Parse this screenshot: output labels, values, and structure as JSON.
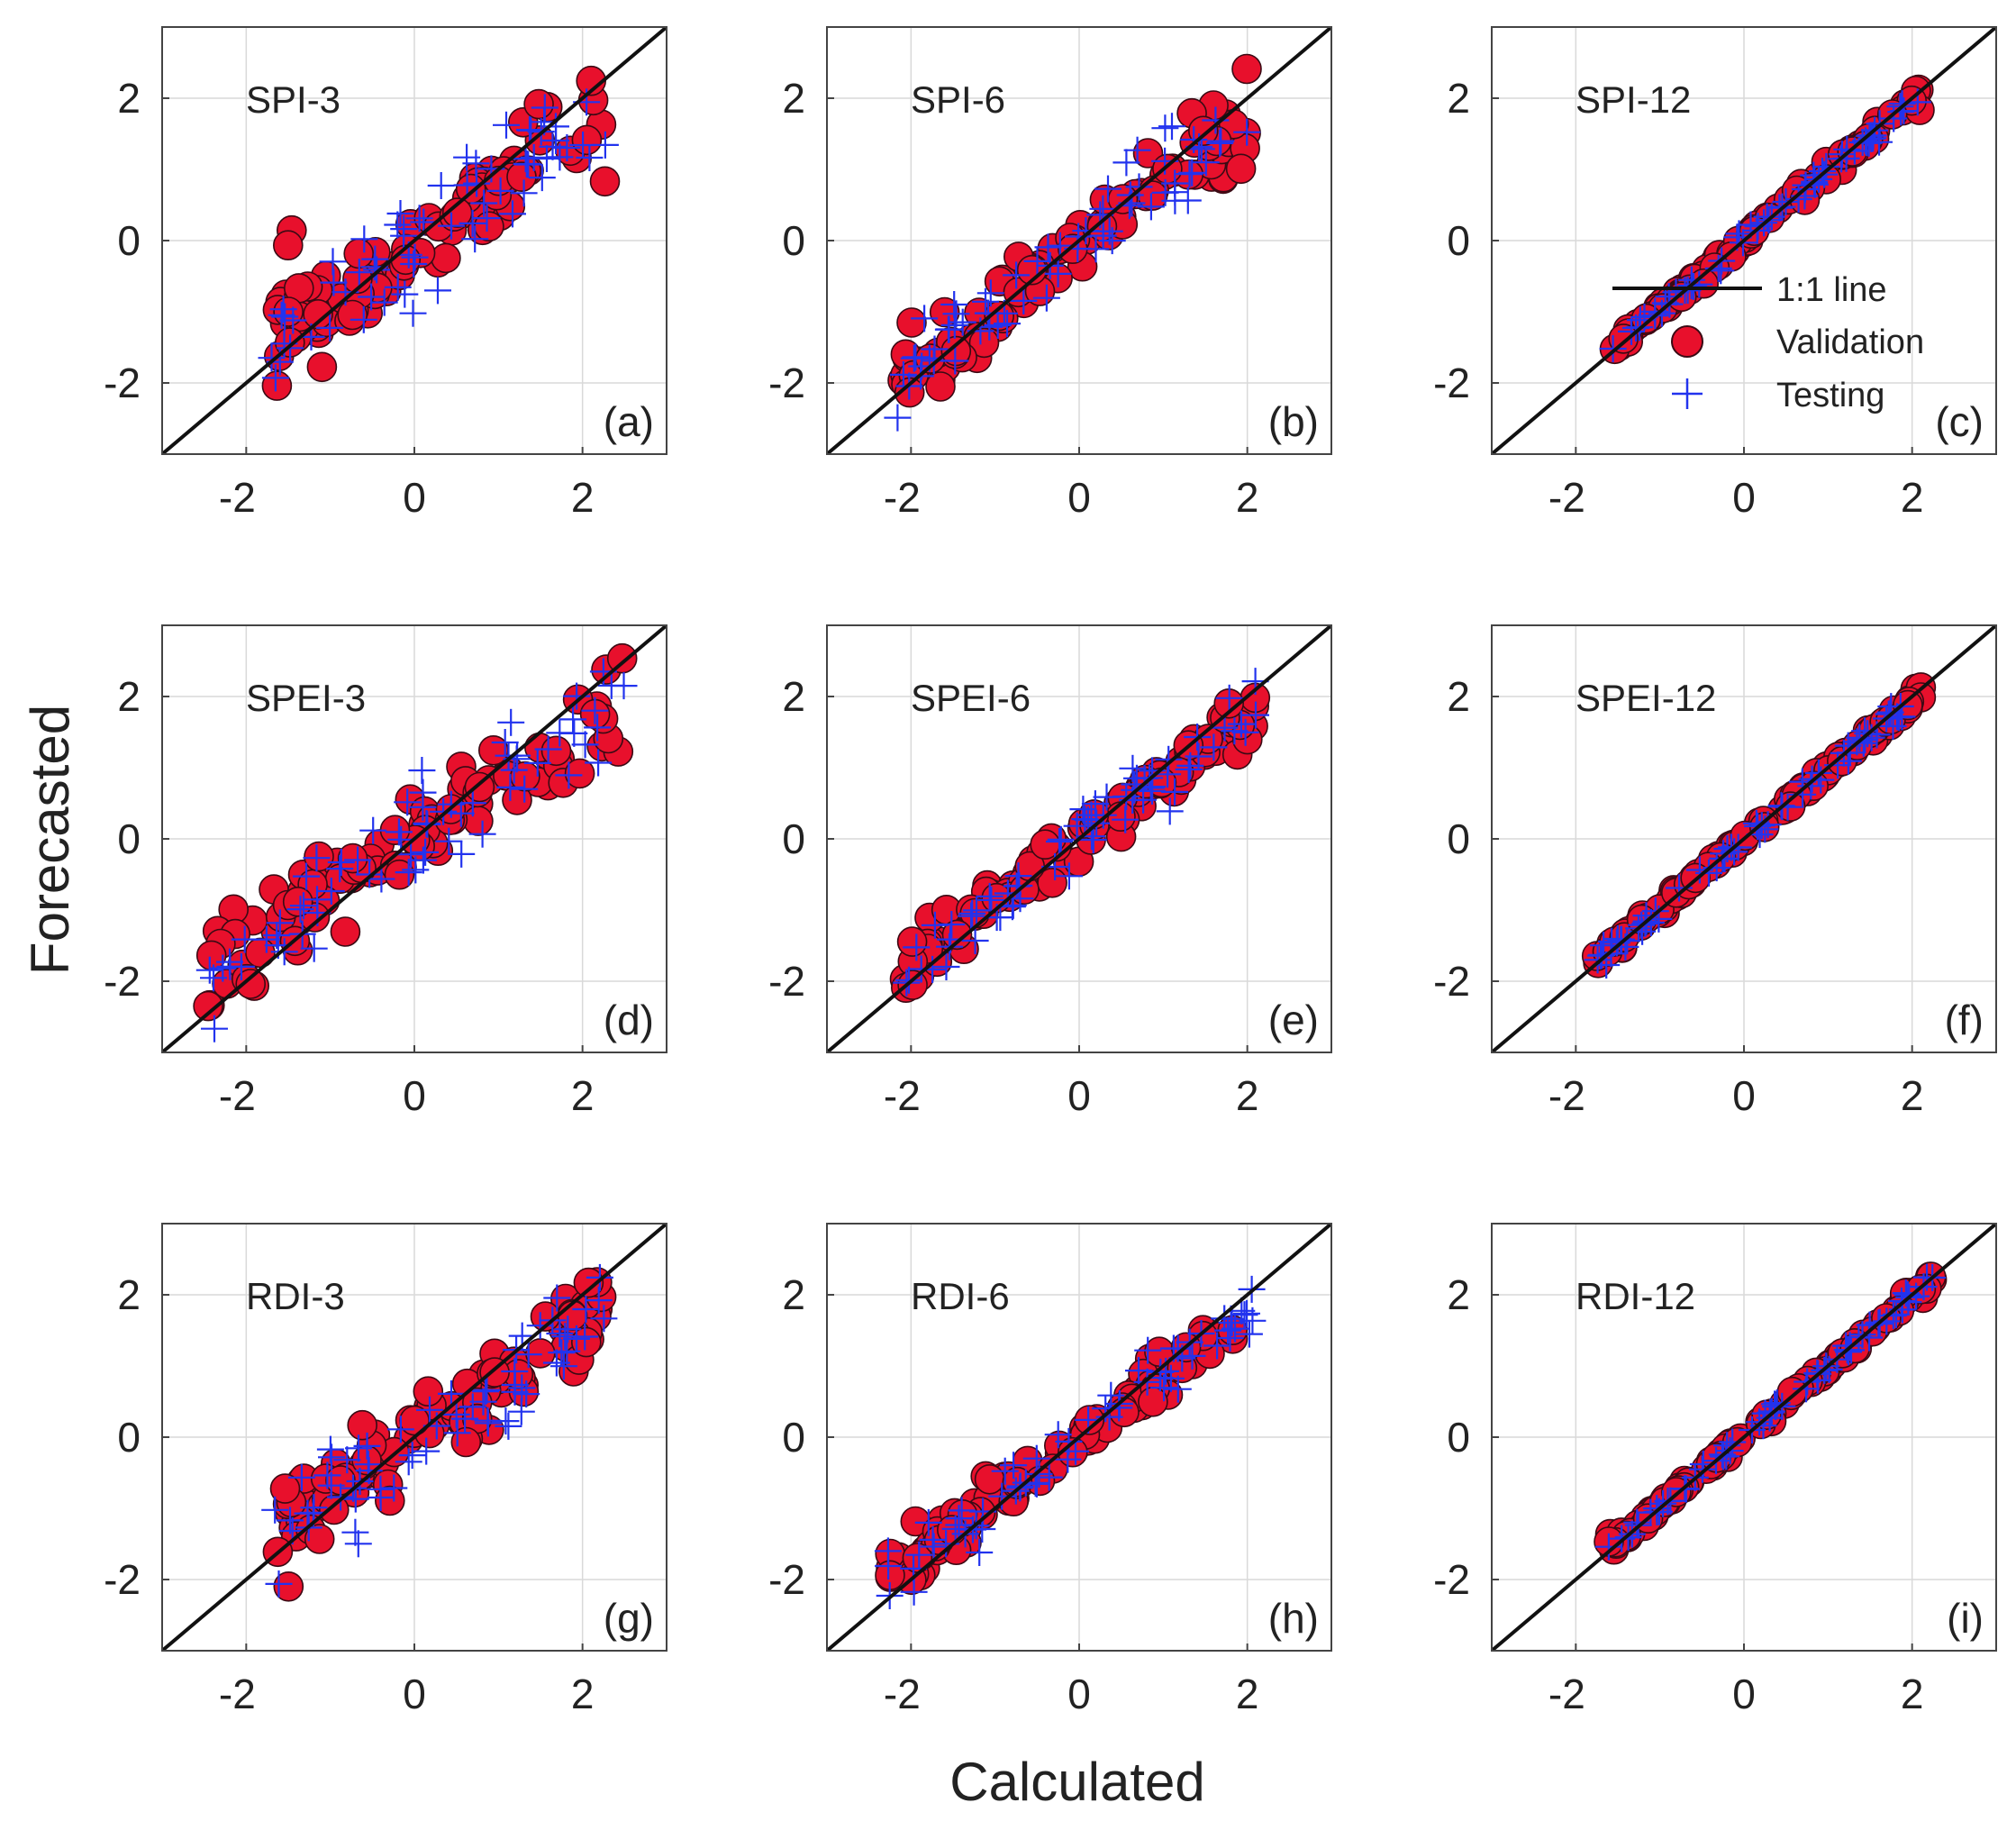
{
  "figure": {
    "xlabel": "Calculated",
    "ylabel": "Forecasted",
    "colors": {
      "validation_fill": "#e8102c",
      "validation_edge": "#3a0a14",
      "testing": "#2233ee",
      "line": "#111111",
      "grid": "#d9d9d9",
      "axes": "#444444"
    }
  },
  "legend": {
    "line_label": "1:1 line",
    "validation_label": "Validation",
    "testing_label": "Testing"
  },
  "chart_data": [
    {
      "type": "scatter",
      "title": "SPI-3",
      "letter": "(a)",
      "xlim": [
        -3,
        3
      ],
      "ylim": [
        -3,
        3
      ],
      "xticks": [
        -2,
        0,
        2
      ],
      "yticks": [
        -2,
        0,
        2
      ],
      "spread": 0.42,
      "xrange": [
        -1.7,
        2.3
      ],
      "slope": 0.78,
      "offset": -0.05,
      "seed": 11
    },
    {
      "type": "scatter",
      "title": "SPI-6",
      "letter": "(b)",
      "xlim": [
        -3,
        3
      ],
      "ylim": [
        -3,
        3
      ],
      "xticks": [
        -2,
        0,
        2
      ],
      "yticks": [
        -2,
        0,
        2
      ],
      "spread": 0.3,
      "xrange": [
        -2.2,
        2.0
      ],
      "slope": 0.88,
      "offset": -0.02,
      "seed": 23
    },
    {
      "type": "scatter",
      "title": "SPI-12",
      "letter": "(c)",
      "xlim": [
        -3,
        3
      ],
      "ylim": [
        -3,
        3
      ],
      "xticks": [
        -2,
        0,
        2
      ],
      "yticks": [
        -2,
        0,
        2
      ],
      "spread": 0.08,
      "xrange": [
        -1.6,
        2.1
      ],
      "slope": 0.97,
      "offset": 0.0,
      "seed": 37
    },
    {
      "type": "scatter",
      "title": "SPEI-3",
      "letter": "(d)",
      "xlim": [
        -3,
        3
      ],
      "ylim": [
        -3,
        3
      ],
      "xticks": [
        -2,
        0,
        2
      ],
      "yticks": [
        -2,
        0,
        2
      ],
      "spread": 0.38,
      "xrange": [
        -2.5,
        2.5
      ],
      "slope": 0.76,
      "offset": 0.0,
      "seed": 41
    },
    {
      "type": "scatter",
      "title": "SPEI-6",
      "letter": "(e)",
      "xlim": [
        -3,
        3
      ],
      "ylim": [
        -3,
        3
      ],
      "xticks": [
        -2,
        0,
        2
      ],
      "yticks": [
        -2,
        0,
        2
      ],
      "spread": 0.22,
      "xrange": [
        -2.1,
        2.1
      ],
      "slope": 0.88,
      "offset": 0.0,
      "seed": 53
    },
    {
      "type": "scatter",
      "title": "SPEI-12",
      "letter": "(f)",
      "xlim": [
        -3,
        3
      ],
      "ylim": [
        -3,
        3
      ],
      "xticks": [
        -2,
        0,
        2
      ],
      "yticks": [
        -2,
        0,
        2
      ],
      "spread": 0.07,
      "xrange": [
        -1.75,
        2.15
      ],
      "slope": 0.97,
      "offset": 0.0,
      "seed": 67
    },
    {
      "type": "scatter",
      "title": "RDI-3",
      "letter": "(g)",
      "xlim": [
        -3,
        3
      ],
      "ylim": [
        -3,
        3
      ],
      "xticks": [
        -2,
        0,
        2
      ],
      "yticks": [
        -2,
        0,
        2
      ],
      "spread": 0.4,
      "xrange": [
        -1.7,
        2.3
      ],
      "slope": 0.78,
      "offset": 0.0,
      "seed": 71
    },
    {
      "type": "scatter",
      "title": "RDI-6",
      "letter": "(h)",
      "xlim": [
        -3,
        3
      ],
      "ylim": [
        -3,
        3
      ],
      "xticks": [
        -2,
        0,
        2
      ],
      "yticks": [
        -2,
        0,
        2
      ],
      "spread": 0.2,
      "xrange": [
        -2.3,
        2.1
      ],
      "slope": 0.86,
      "offset": 0.0,
      "seed": 83
    },
    {
      "type": "scatter",
      "title": "RDI-12",
      "letter": "(i)",
      "xlim": [
        -3,
        3
      ],
      "ylim": [
        -3,
        3
      ],
      "xticks": [
        -2,
        0,
        2
      ],
      "yticks": [
        -2,
        0,
        2
      ],
      "spread": 0.07,
      "xrange": [
        -1.65,
        2.25
      ],
      "slope": 0.98,
      "offset": 0.0,
      "seed": 97
    }
  ]
}
